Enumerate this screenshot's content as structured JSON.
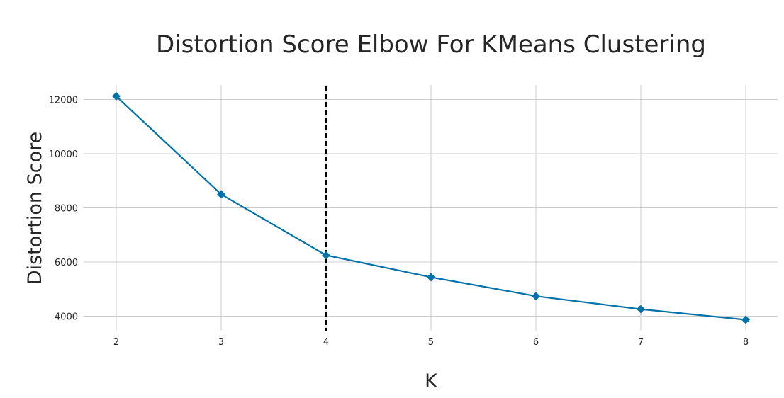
{
  "chart_data": {
    "type": "line",
    "title": "Distortion Score Elbow For KMeans Clustering",
    "xlabel": "K",
    "ylabel": "Distortion Score",
    "x": [
      2,
      3,
      4,
      5,
      6,
      7,
      8
    ],
    "x_ticks": [
      "2",
      "3",
      "4",
      "5",
      "6",
      "7",
      "8"
    ],
    "y_ticks": [
      4000,
      6000,
      8000,
      10000,
      12000
    ],
    "y_tick_labels": [
      "4000",
      "6000",
      "8000",
      "10000",
      "12000"
    ],
    "xlim": [
      2,
      8
    ],
    "ylim": [
      3500,
      12500
    ],
    "grid": true,
    "series": [
      {
        "values": [
          12120,
          8500,
          6250,
          5440,
          4740,
          4260,
          3870
        ],
        "color": "#0072a8",
        "marker": "diamond"
      }
    ],
    "elbow": {
      "x": 4,
      "color": "#000000",
      "style": "dashed"
    }
  }
}
